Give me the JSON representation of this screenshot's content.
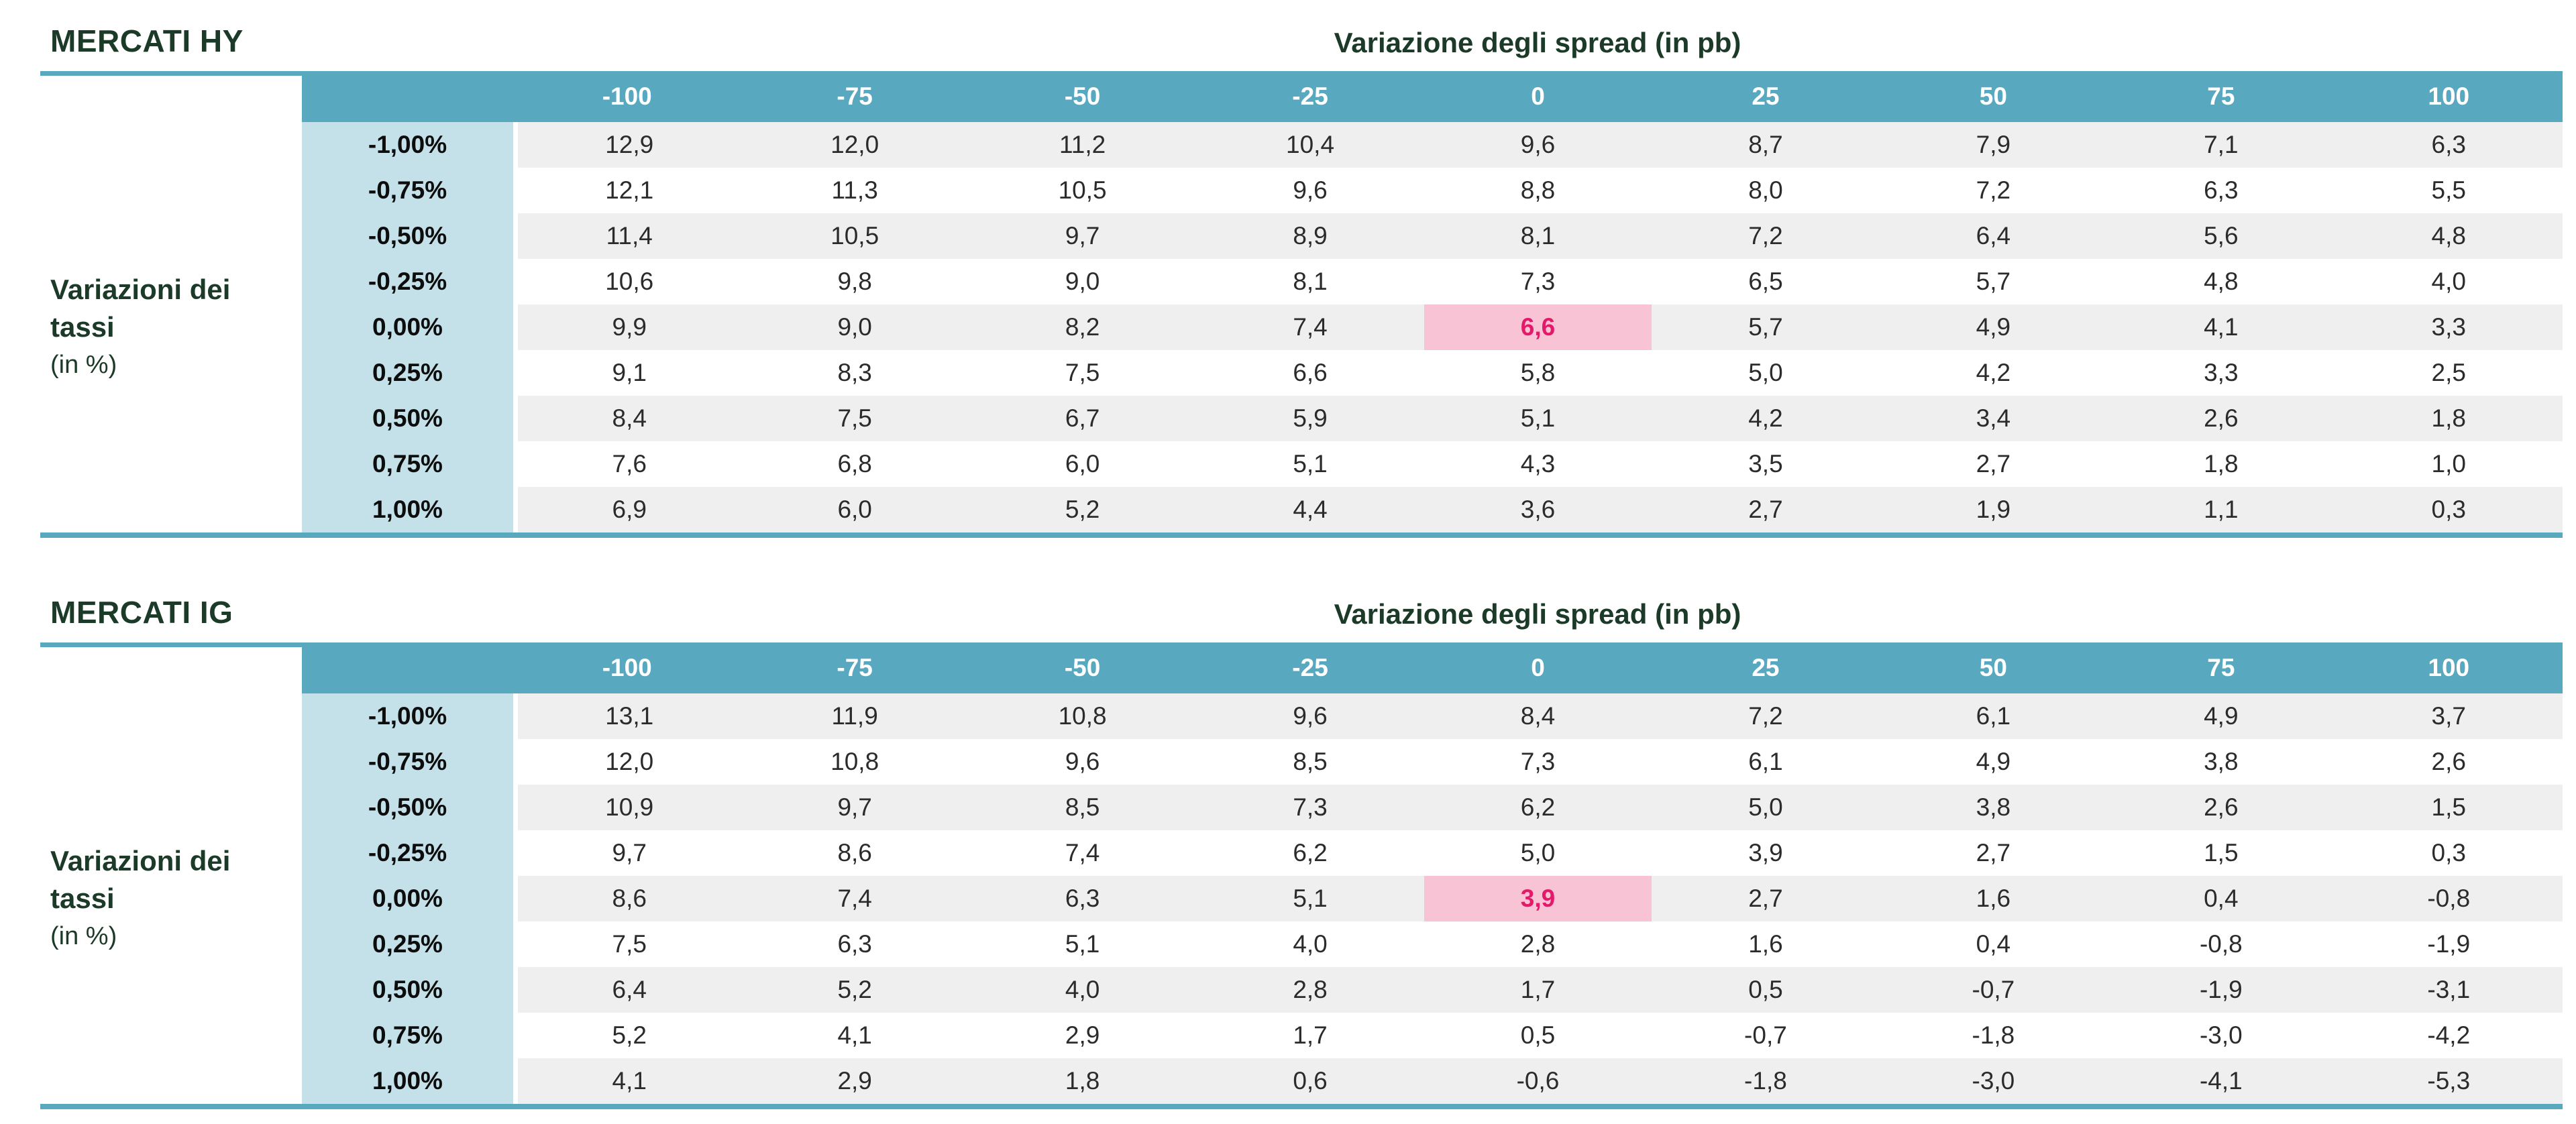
{
  "colors": {
    "teal_band": "#58a8c0",
    "rowheader_blue": "#c4e1e9",
    "stripe_gray": "#efefef",
    "highlight_pink": "#f8c3d5",
    "highlight_text": "#e5196a",
    "title_green": "#1c3a28",
    "cell_text": "#2b2b2b"
  },
  "tables": [
    {
      "market_label": "MERCATI HY",
      "spread_axis_title": "Variazione degli spread (in pb)",
      "rate_axis_label_line1": "Variazioni dei",
      "rate_axis_label_line2": "tassi",
      "rate_axis_note": "(in %)",
      "col_headers": [
        "-100",
        "-75",
        "-50",
        "-25",
        "0",
        "25",
        "50",
        "75",
        "100"
      ],
      "row_headers": [
        "-1,00%",
        "-0,75%",
        "-0,50%",
        "-0,25%",
        "0,00%",
        "0,25%",
        "0,50%",
        "0,75%",
        "1,00%"
      ],
      "rows": [
        [
          "12,9",
          "12,0",
          "11,2",
          "10,4",
          "9,6",
          "8,7",
          "7,9",
          "7,1",
          "6,3"
        ],
        [
          "12,1",
          "11,3",
          "10,5",
          "9,6",
          "8,8",
          "8,0",
          "7,2",
          "6,3",
          "5,5"
        ],
        [
          "11,4",
          "10,5",
          "9,7",
          "8,9",
          "8,1",
          "7,2",
          "6,4",
          "5,6",
          "4,8"
        ],
        [
          "10,6",
          "9,8",
          "9,0",
          "8,1",
          "7,3",
          "6,5",
          "5,7",
          "4,8",
          "4,0"
        ],
        [
          "9,9",
          "9,0",
          "8,2",
          "7,4",
          "6,6",
          "5,7",
          "4,9",
          "4,1",
          "3,3"
        ],
        [
          "9,1",
          "8,3",
          "7,5",
          "6,6",
          "5,8",
          "5,0",
          "4,2",
          "3,3",
          "2,5"
        ],
        [
          "8,4",
          "7,5",
          "6,7",
          "5,9",
          "5,1",
          "4,2",
          "3,4",
          "2,6",
          "1,8"
        ],
        [
          "7,6",
          "6,8",
          "6,0",
          "5,1",
          "4,3",
          "3,5",
          "2,7",
          "1,8",
          "1,0"
        ],
        [
          "6,9",
          "6,0",
          "5,2",
          "4,4",
          "3,6",
          "2,7",
          "1,9",
          "1,1",
          "0,3"
        ]
      ],
      "highlight_cell": {
        "row_index": 4,
        "col_index": 4,
        "value": "6,6"
      }
    },
    {
      "market_label": "MERCATI IG",
      "spread_axis_title": "Variazione degli spread (in pb)",
      "rate_axis_label_line1": "Variazioni dei",
      "rate_axis_label_line2": "tassi",
      "rate_axis_note": "(in %)",
      "col_headers": [
        "-100",
        "-75",
        "-50",
        "-25",
        "0",
        "25",
        "50",
        "75",
        "100"
      ],
      "row_headers": [
        "-1,00%",
        "-0,75%",
        "-0,50%",
        "-0,25%",
        "0,00%",
        "0,25%",
        "0,50%",
        "0,75%",
        "1,00%"
      ],
      "rows": [
        [
          "13,1",
          "11,9",
          "10,8",
          "9,6",
          "8,4",
          "7,2",
          "6,1",
          "4,9",
          "3,7"
        ],
        [
          "12,0",
          "10,8",
          "9,6",
          "8,5",
          "7,3",
          "6,1",
          "4,9",
          "3,8",
          "2,6"
        ],
        [
          "10,9",
          "9,7",
          "8,5",
          "7,3",
          "6,2",
          "5,0",
          "3,8",
          "2,6",
          "1,5"
        ],
        [
          "9,7",
          "8,6",
          "7,4",
          "6,2",
          "5,0",
          "3,9",
          "2,7",
          "1,5",
          "0,3"
        ],
        [
          "8,6",
          "7,4",
          "6,3",
          "5,1",
          "3,9",
          "2,7",
          "1,6",
          "0,4",
          "-0,8"
        ],
        [
          "7,5",
          "6,3",
          "5,1",
          "4,0",
          "2,8",
          "1,6",
          "0,4",
          "-0,8",
          "-1,9"
        ],
        [
          "6,4",
          "5,2",
          "4,0",
          "2,8",
          "1,7",
          "0,5",
          "-0,7",
          "-1,9",
          "-3,1"
        ],
        [
          "5,2",
          "4,1",
          "2,9",
          "1,7",
          "0,5",
          "-0,7",
          "-1,8",
          "-3,0",
          "-4,2"
        ],
        [
          "4,1",
          "2,9",
          "1,8",
          "0,6",
          "-0,6",
          "-1,8",
          "-3,0",
          "-4,1",
          "-5,3"
        ]
      ],
      "highlight_cell": {
        "row_index": 4,
        "col_index": 4,
        "value": "3,9"
      }
    }
  ],
  "chart_data": [
    {
      "type": "table",
      "title": "MERCATI HY",
      "subtitle": "Variazione degli spread (in pb)",
      "xlabel": "Variazione degli spread (in pb)",
      "ylabel": "Variazioni dei tassi (in %)",
      "columns_spread_bp": [
        -100,
        -75,
        -50,
        -25,
        0,
        25,
        50,
        75,
        100
      ],
      "rows_rate_change_pct": [
        -1.0,
        -0.75,
        -0.5,
        -0.25,
        0.0,
        0.25,
        0.5,
        0.75,
        1.0
      ],
      "values": [
        [
          12.9,
          12.0,
          11.2,
          10.4,
          9.6,
          8.7,
          7.9,
          7.1,
          6.3
        ],
        [
          12.1,
          11.3,
          10.5,
          9.6,
          8.8,
          8.0,
          7.2,
          6.3,
          5.5
        ],
        [
          11.4,
          10.5,
          9.7,
          8.9,
          8.1,
          7.2,
          6.4,
          5.6,
          4.8
        ],
        [
          10.6,
          9.8,
          9.0,
          8.1,
          7.3,
          6.5,
          5.7,
          4.8,
          4.0
        ],
        [
          9.9,
          9.0,
          8.2,
          7.4,
          6.6,
          5.7,
          4.9,
          4.1,
          3.3
        ],
        [
          9.1,
          8.3,
          7.5,
          6.6,
          5.8,
          5.0,
          4.2,
          3.3,
          2.5
        ],
        [
          8.4,
          7.5,
          6.7,
          5.9,
          5.1,
          4.2,
          3.4,
          2.6,
          1.8
        ],
        [
          7.6,
          6.8,
          6.0,
          5.1,
          4.3,
          3.5,
          2.7,
          1.8,
          1.0
        ],
        [
          6.9,
          6.0,
          5.2,
          4.4,
          3.6,
          2.7,
          1.9,
          1.1,
          0.3
        ]
      ],
      "highlight": {
        "rate_pct": 0.0,
        "spread_bp": 0,
        "value": 6.6
      }
    },
    {
      "type": "table",
      "title": "MERCATI IG",
      "subtitle": "Variazione degli spread (in pb)",
      "xlabel": "Variazione degli spread (in pb)",
      "ylabel": "Variazioni dei tassi (in %)",
      "columns_spread_bp": [
        -100,
        -75,
        -50,
        -25,
        0,
        25,
        50,
        75,
        100
      ],
      "rows_rate_change_pct": [
        -1.0,
        -0.75,
        -0.5,
        -0.25,
        0.0,
        0.25,
        0.5,
        0.75,
        1.0
      ],
      "values": [
        [
          13.1,
          11.9,
          10.8,
          9.6,
          8.4,
          7.2,
          6.1,
          4.9,
          3.7
        ],
        [
          12.0,
          10.8,
          9.6,
          8.5,
          7.3,
          6.1,
          4.9,
          3.8,
          2.6
        ],
        [
          10.9,
          9.7,
          8.5,
          7.3,
          6.2,
          5.0,
          3.8,
          2.6,
          1.5
        ],
        [
          9.7,
          8.6,
          7.4,
          6.2,
          5.0,
          3.9,
          2.7,
          1.5,
          0.3
        ],
        [
          8.6,
          7.4,
          6.3,
          5.1,
          3.9,
          2.7,
          1.6,
          0.4,
          -0.8
        ],
        [
          7.5,
          6.3,
          5.1,
          4.0,
          2.8,
          1.6,
          0.4,
          -0.8,
          -1.9
        ],
        [
          6.4,
          5.2,
          4.0,
          2.8,
          1.7,
          0.5,
          -0.7,
          -1.9,
          -3.1
        ],
        [
          5.2,
          4.1,
          2.9,
          1.7,
          0.5,
          -0.7,
          -1.8,
          -3.0,
          -4.2
        ],
        [
          4.1,
          2.9,
          1.8,
          0.6,
          -0.6,
          -1.8,
          -3.0,
          -4.1,
          -5.3
        ]
      ],
      "highlight": {
        "rate_pct": 0.0,
        "spread_bp": 0,
        "value": 3.9
      }
    }
  ]
}
